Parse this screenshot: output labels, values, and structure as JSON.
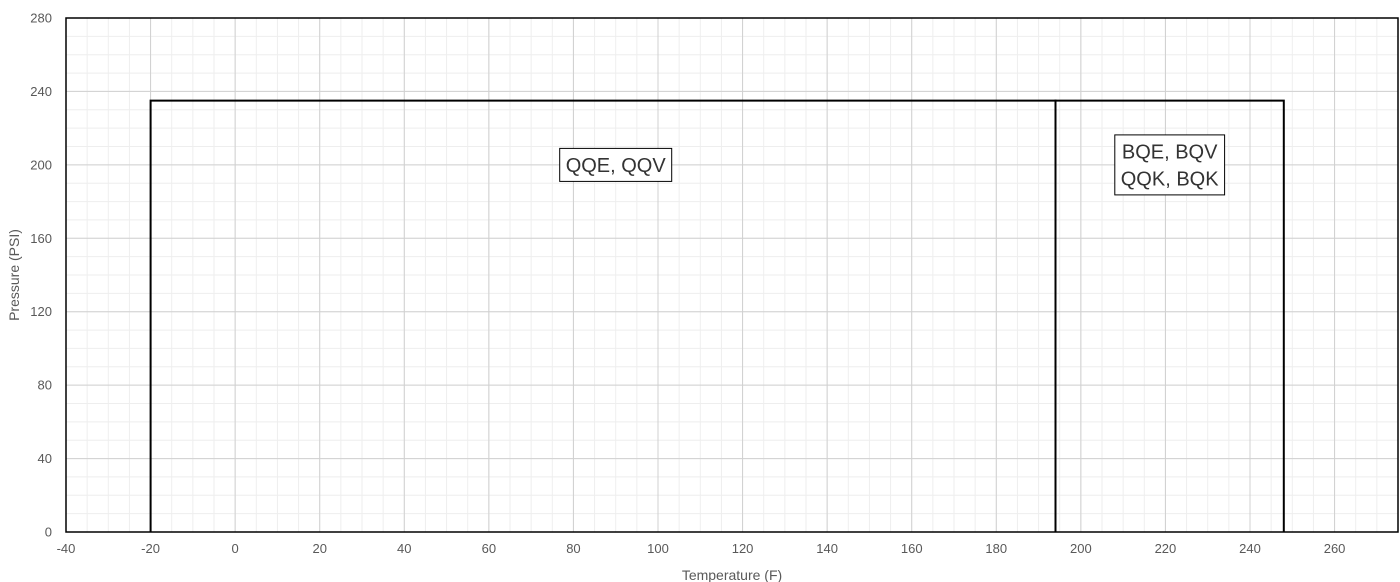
{
  "chart_data": {
    "type": "area",
    "xlabel": "Temperature (F)",
    "ylabel": "Pressure (PSI)",
    "xlim": [
      -40,
      275
    ],
    "ylim": [
      0,
      280
    ],
    "x_ticks": [
      -40,
      -20,
      0,
      20,
      40,
      60,
      80,
      100,
      120,
      140,
      160,
      180,
      200,
      220,
      240,
      260
    ],
    "y_ticks": [
      0,
      40,
      80,
      120,
      160,
      200,
      240,
      280
    ],
    "x_minor_step": 5,
    "y_minor_step": 10,
    "grid": true,
    "regions": [
      {
        "lines": [
          "QQE, QQV"
        ],
        "points": [
          [
            -20,
            0
          ],
          [
            -20,
            235
          ],
          [
            194,
            235
          ],
          [
            194,
            0
          ]
        ],
        "label_at": [
          90,
          200
        ]
      },
      {
        "lines": [
          "BQE, BQV",
          "QQK, BQK"
        ],
        "points": [
          [
            194,
            0
          ],
          [
            194,
            235
          ],
          [
            248,
            235
          ],
          [
            248,
            0
          ]
        ],
        "label_at": [
          221,
          200
        ]
      }
    ]
  }
}
